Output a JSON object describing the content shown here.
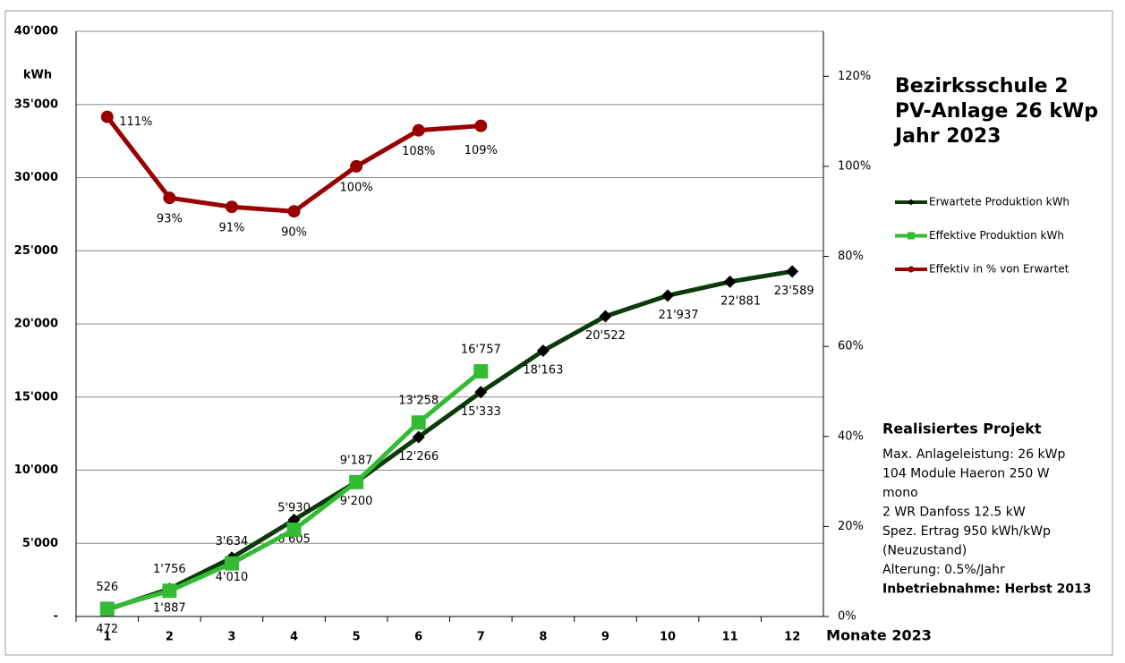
{
  "chart_data": {
    "type": "line",
    "title_lines": [
      "Bezirksschule 2",
      "PV-Anlage 26 kWp",
      "Jahr 2023"
    ],
    "y_label": "kWh",
    "x_label": "Monate 2023",
    "categories": [
      "1",
      "2",
      "3",
      "4",
      "5",
      "6",
      "7",
      "8",
      "9",
      "10",
      "11",
      "12"
    ],
    "ylim": [
      0,
      40000
    ],
    "yticks": [
      {
        "value": 0,
        "label": "-"
      },
      {
        "value": 5000,
        "label": "5'000"
      },
      {
        "value": 10000,
        "label": "10'000"
      },
      {
        "value": 15000,
        "label": "15'000"
      },
      {
        "value": 20000,
        "label": "20'000"
      },
      {
        "value": 25000,
        "label": "25'000"
      },
      {
        "value": 30000,
        "label": "30'000"
      },
      {
        "value": 35000,
        "label": "35'000"
      },
      {
        "value": 40000,
        "label": "40'000"
      }
    ],
    "y2lim": [
      0,
      130
    ],
    "y2ticks": [
      {
        "value": 0,
        "label": "0%"
      },
      {
        "value": 20,
        "label": "20%"
      },
      {
        "value": 40,
        "label": "40%"
      },
      {
        "value": 60,
        "label": "60%"
      },
      {
        "value": 80,
        "label": "80%"
      },
      {
        "value": 100,
        "label": "100%"
      },
      {
        "value": 120,
        "label": "120%"
      }
    ],
    "grid": true,
    "series": [
      {
        "name": "Erwartete Produktion kWh",
        "color": "#0b3a0b",
        "marker_color": "#000000",
        "marker": "diamond",
        "values": [
          472,
          1887,
          4010,
          6605,
          9200,
          12266,
          15333,
          18163,
          20522,
          21937,
          22881,
          23589
        ],
        "value_labels": [
          "472",
          "1'887",
          "4'010",
          "6'605",
          "9'200",
          "12'266",
          "15'333",
          "18'163",
          "20'522",
          "21'937",
          "22'881",
          "23'589"
        ]
      },
      {
        "name": "Effektive Produktion kWh",
        "color": "#33bb33",
        "marker_color": "#33bb33",
        "marker": "square",
        "values": [
          526,
          1756,
          3634,
          5930,
          9187,
          13258,
          16757,
          null,
          null,
          null,
          null,
          null
        ],
        "value_labels": [
          "526",
          "1'756",
          "3'634",
          "5'930",
          "9'187",
          "13'258",
          "16'757",
          null,
          null,
          null,
          null,
          null
        ]
      },
      {
        "name": "Effektiv in % von Erwartet",
        "color": "#990000",
        "marker_color": "#990000",
        "marker": "circle",
        "axis": "y2",
        "values": [
          111,
          93,
          91,
          90,
          100,
          108,
          109,
          null,
          null,
          null,
          null,
          null
        ],
        "value_labels": [
          "111%",
          "93%",
          "91%",
          "90%",
          "100%",
          "108%",
          "109%",
          null,
          null,
          null,
          null,
          null
        ]
      }
    ],
    "info": {
      "title": "Realisiertes Projekt",
      "lines": [
        "Max. Anlageleistung: 26 kWp",
        "104 Module Haeron 250 W",
        "mono",
        "2 WR Danfoss 12.5 kW",
        "Spez. Ertrag 950 kWh/kWp",
        "(Neuzustand)",
        "Alterung: 0.5%/Jahr"
      ],
      "footer": "Inbetriebnahme: Herbst 2013"
    }
  }
}
